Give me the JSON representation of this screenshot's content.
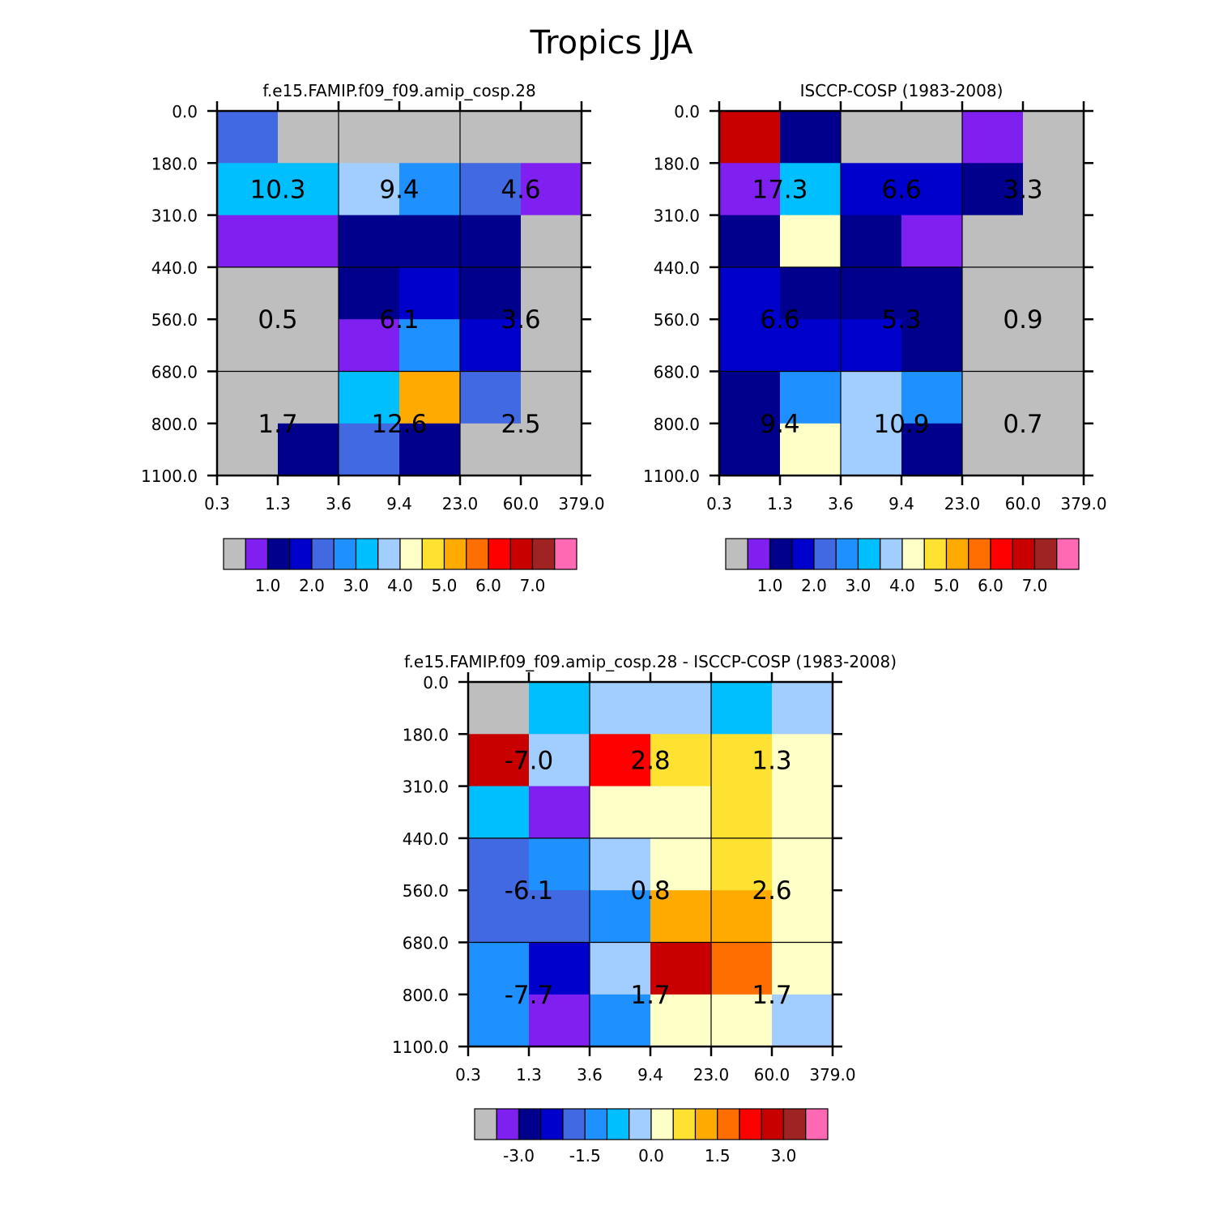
{
  "title": "Tropics JJA",
  "colors": {
    "palette": [
      "#BEBEBE",
      "#8020F0",
      "#00008C",
      "#0000CD",
      "#4169E1",
      "#1E90FF",
      "#00BFFF",
      "#A2CDFF",
      "#FFFFC8",
      "#FFE132",
      "#FFAA00",
      "#FF6E00",
      "#FF0000",
      "#C80000",
      "#A02323",
      "#FF69B4"
    ],
    "missing": "#BEBEBE"
  },
  "chart_data": [
    {
      "type": "heatmap",
      "title": "f.e15.FAMIP.f09_f09.amip_cosp.28",
      "x_ticks": [
        "0.3",
        "1.3",
        "3.6",
        "9.4",
        "23.0",
        "60.0",
        "379.0"
      ],
      "y_ticks": [
        "0.0",
        "180.0",
        "310.0",
        "440.0",
        "560.0",
        "680.0",
        "800.0",
        "1100.0"
      ],
      "cells": [
        [
          4,
          0,
          0,
          0,
          0,
          0
        ],
        [
          6,
          6,
          7,
          5,
          4,
          1
        ],
        [
          1,
          1,
          2,
          2,
          2,
          0
        ],
        [
          0,
          0,
          2,
          3,
          2,
          0
        ],
        [
          0,
          0,
          1,
          5,
          3,
          0
        ],
        [
          0,
          0,
          6,
          10,
          4,
          0
        ],
        [
          0,
          2,
          4,
          2,
          0,
          0
        ]
      ],
      "block_labels": [
        [
          "10.3",
          "9.4",
          "4.6"
        ],
        [
          "0.5",
          "6.1",
          "3.6"
        ],
        [
          "1.7",
          "12.6",
          "2.5"
        ]
      ],
      "colorbar": {
        "levels": [
          "1.0",
          "2.0",
          "3.0",
          "4.0",
          "5.0",
          "6.0",
          "7.0"
        ],
        "label_every": 2,
        "first_label_boundary": 2
      }
    },
    {
      "type": "heatmap",
      "title": "ISCCP-COSP (1983-2008)",
      "x_ticks": [
        "0.3",
        "1.3",
        "3.6",
        "9.4",
        "23.0",
        "60.0",
        "379.0"
      ],
      "y_ticks": [
        "0.0",
        "180.0",
        "310.0",
        "440.0",
        "560.0",
        "680.0",
        "800.0",
        "1100.0"
      ],
      "cells": [
        [
          13,
          2,
          0,
          0,
          1,
          0
        ],
        [
          1,
          6,
          3,
          3,
          2,
          0
        ],
        [
          2,
          8,
          2,
          1,
          0,
          0
        ],
        [
          3,
          2,
          2,
          2,
          0,
          0
        ],
        [
          3,
          3,
          3,
          2,
          0,
          0
        ],
        [
          2,
          5,
          7,
          5,
          0,
          0
        ],
        [
          2,
          8,
          7,
          2,
          0,
          0
        ]
      ],
      "block_labels": [
        [
          "17.3",
          "6.6",
          "3.3"
        ],
        [
          "6.6",
          "5.3",
          "0.9"
        ],
        [
          "9.4",
          "10.9",
          "0.7"
        ]
      ],
      "colorbar": {
        "levels": [
          "1.0",
          "2.0",
          "3.0",
          "4.0",
          "5.0",
          "6.0",
          "7.0"
        ],
        "label_every": 2,
        "first_label_boundary": 2
      }
    },
    {
      "type": "heatmap",
      "title": "f.e15.FAMIP.f09_f09.amip_cosp.28 - ISCCP-COSP (1983-2008)",
      "x_ticks": [
        "0.3",
        "1.3",
        "3.6",
        "9.4",
        "23.0",
        "60.0",
        "379.0"
      ],
      "y_ticks": [
        "0.0",
        "180.0",
        "310.0",
        "440.0",
        "560.0",
        "680.0",
        "800.0",
        "1100.0"
      ],
      "cells": [
        [
          0,
          6,
          7,
          7,
          6,
          7
        ],
        [
          13,
          7,
          12,
          9,
          9,
          8
        ],
        [
          6,
          1,
          8,
          8,
          9,
          8
        ],
        [
          4,
          5,
          7,
          8,
          9,
          8
        ],
        [
          4,
          4,
          5,
          10,
          10,
          8
        ],
        [
          5,
          3,
          7,
          13,
          11,
          8
        ],
        [
          5,
          1,
          5,
          8,
          8,
          7
        ]
      ],
      "block_labels": [
        [
          "-7.0",
          "2.8",
          "1.3"
        ],
        [
          "-6.1",
          "0.8",
          "2.6"
        ],
        [
          "-7.7",
          "1.7",
          "1.7"
        ]
      ],
      "colorbar": {
        "levels": [
          "-3.0",
          "-1.5",
          "0.0",
          "1.5",
          "3.0"
        ],
        "label_every": 3,
        "first_label_boundary": 2
      }
    }
  ]
}
